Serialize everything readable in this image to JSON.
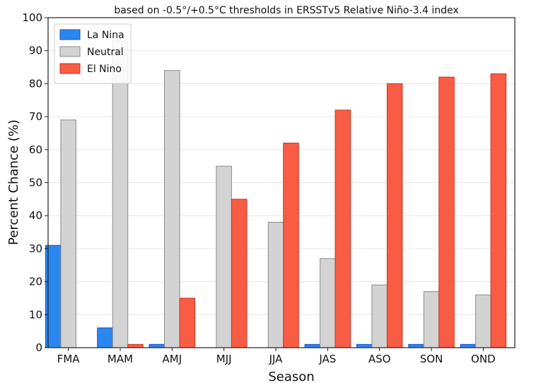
{
  "chart_data": {
    "type": "bar",
    "title": "based on -0.5°/+0.5°C thresholds in ERSSTv5 Relative Niño-3.4 index",
    "xlabel": "Season",
    "ylabel": "Percent Chance (%)",
    "ylim": [
      0,
      100
    ],
    "yticks": [
      "0",
      "10",
      "20",
      "30",
      "40",
      "50",
      "60",
      "70",
      "80",
      "90",
      "100"
    ],
    "grid": true,
    "legend_position": "top-left",
    "categories": [
      "FMA",
      "MAM",
      "AMJ",
      "MJJ",
      "JJA",
      "JAS",
      "ASO",
      "SON",
      "OND"
    ],
    "series": [
      {
        "name": "La Nina",
        "color": "#2b87f0",
        "edge": "#1f4fb8",
        "values": [
          31,
          6,
          1,
          0,
          0,
          1,
          1,
          1,
          1
        ]
      },
      {
        "name": "Neutral",
        "color": "#d3d3d3",
        "edge": "#8a8a8a",
        "values": [
          69,
          93,
          84,
          55,
          38,
          27,
          19,
          17,
          16
        ]
      },
      {
        "name": "El Nino",
        "color": "#f95c45",
        "edge": "#c8321f",
        "values": [
          0,
          1,
          15,
          45,
          62,
          72,
          80,
          82,
          83
        ]
      }
    ]
  }
}
